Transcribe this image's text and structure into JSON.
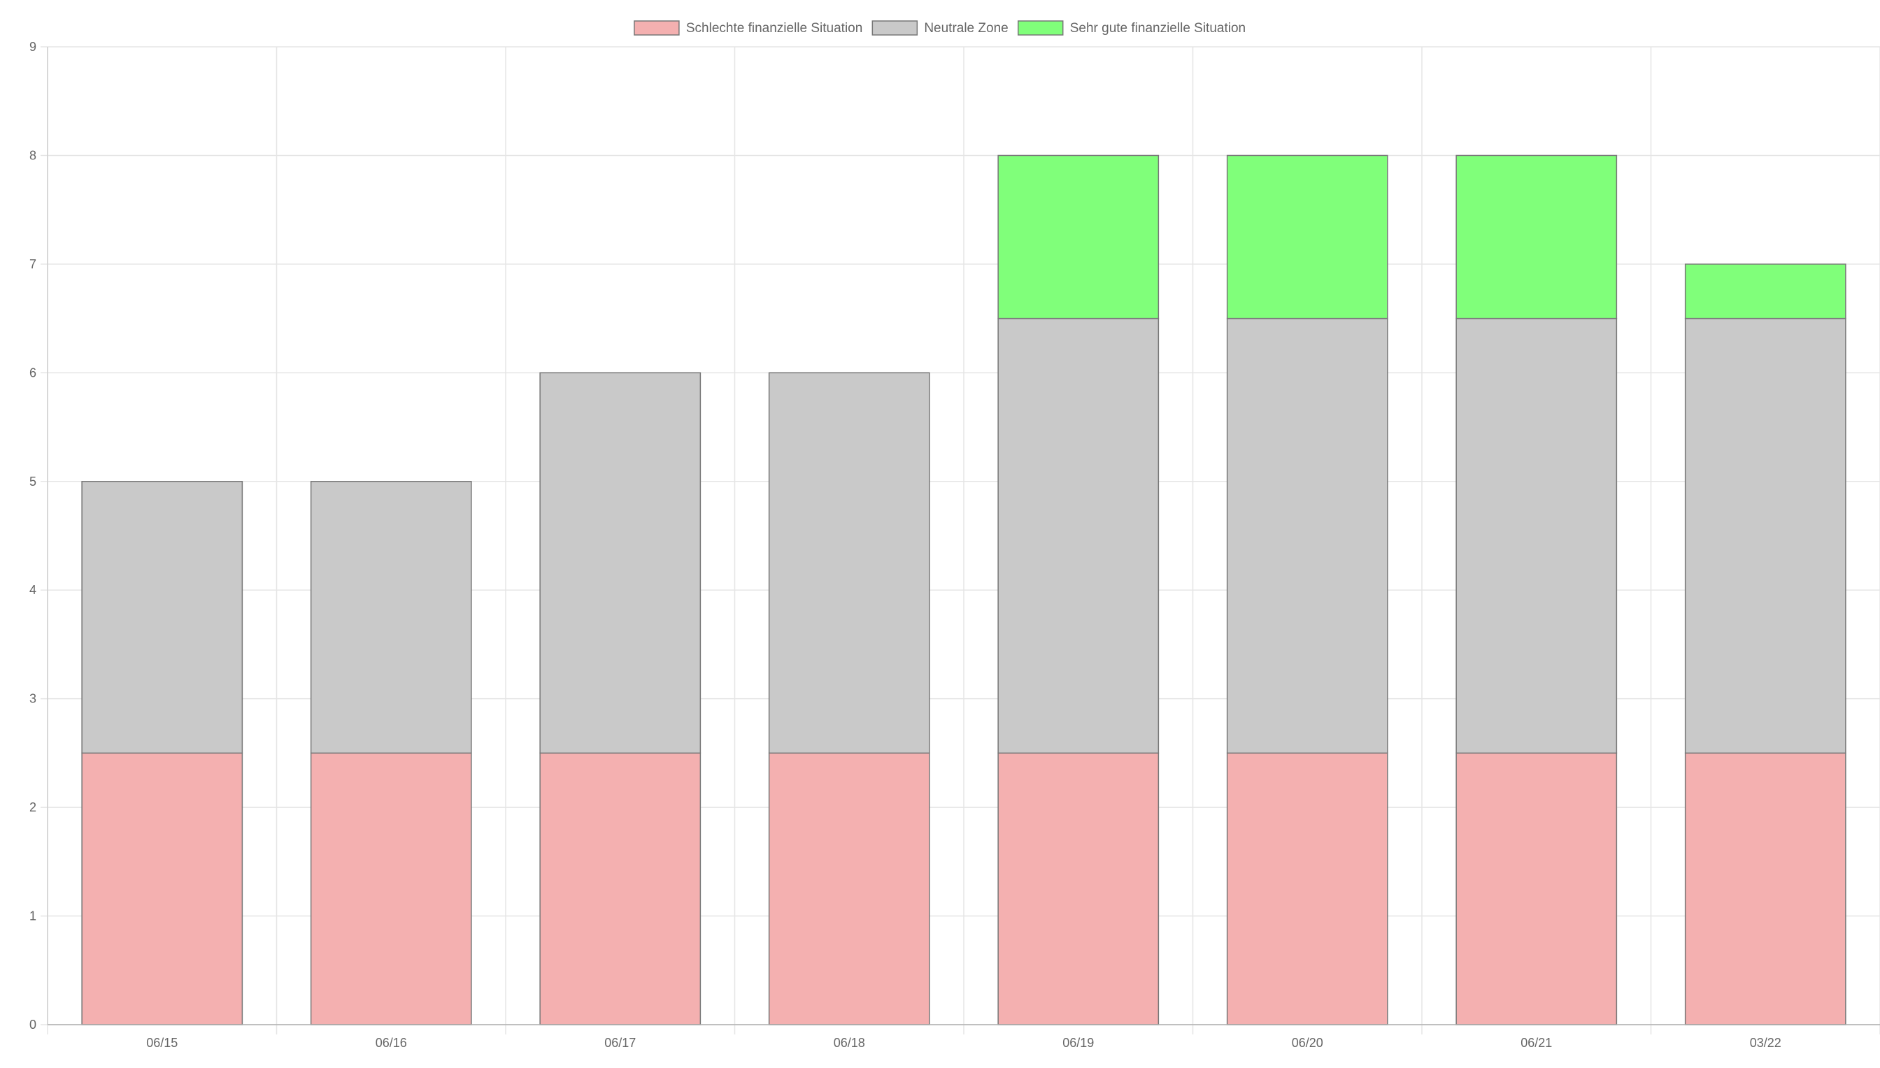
{
  "chart_data": {
    "type": "bar",
    "stacked": true,
    "categories": [
      "06/15",
      "06/16",
      "06/17",
      "06/18",
      "06/19",
      "06/20",
      "06/21",
      "03/22"
    ],
    "series": [
      {
        "name": "Schlechte finanzielle Situation",
        "color": "#f4b0b0",
        "values": [
          2.5,
          2.5,
          2.5,
          2.5,
          2.5,
          2.5,
          2.5,
          2.5
        ]
      },
      {
        "name": "Neutrale Zone",
        "color": "#c9c9c9",
        "values": [
          2.5,
          2.5,
          3.5,
          3.5,
          4,
          4,
          4,
          4
        ]
      },
      {
        "name": "Sehr gute finanzielle Situation",
        "color": "#80ff7a",
        "values": [
          0,
          0,
          0,
          0,
          1.5,
          1.5,
          1.5,
          0.5
        ]
      }
    ],
    "ylim": [
      0,
      9
    ],
    "yticks": [
      "0",
      "1",
      "2",
      "3",
      "4",
      "5",
      "6",
      "7",
      "8",
      "9"
    ],
    "grid": true,
    "legend_position": "top",
    "border_color": "#777777"
  }
}
